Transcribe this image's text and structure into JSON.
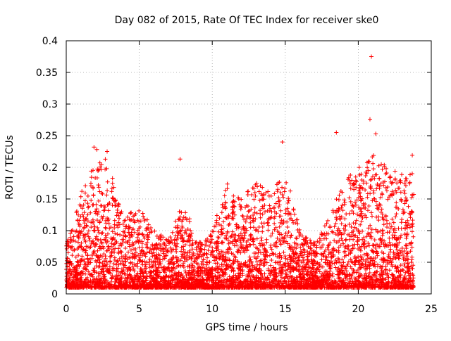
{
  "chart_data": {
    "type": "scatter",
    "title": "Day 082 of 2015, Rate Of TEC Index for receiver ske0",
    "xlabel": "GPS time / hours",
    "ylabel": "ROTI / TECUs",
    "xlim": [
      0,
      25
    ],
    "ylim": [
      0,
      0.4
    ],
    "xticks": [
      0,
      5,
      10,
      15,
      20,
      25
    ],
    "xtick_labels": [
      "0",
      "5",
      "10",
      "15",
      "20",
      "25"
    ],
    "yticks": [
      0,
      0.05,
      0.1,
      0.15,
      0.2,
      0.25,
      0.3,
      0.35,
      0.4
    ],
    "ytick_labels": [
      "0",
      "0.05",
      "0.1",
      "0.15",
      "0.2",
      "0.25",
      "0.3",
      "0.35",
      "0.4"
    ],
    "grid": true,
    "marker": "+",
    "color": "#ff0000",
    "series": [
      {
        "name": "ROTI ske0",
        "x_range": [
          0,
          23.8
        ],
        "typical_range": [
          0.01,
          0.1
        ],
        "envelope": [
          {
            "x": 0.0,
            "y": 0.08
          },
          {
            "x": 0.5,
            "y": 0.11
          },
          {
            "x": 1.0,
            "y": 0.16
          },
          {
            "x": 1.5,
            "y": 0.19
          },
          {
            "x": 2.0,
            "y": 0.2
          },
          {
            "x": 2.5,
            "y": 0.22
          },
          {
            "x": 3.0,
            "y": 0.2
          },
          {
            "x": 3.5,
            "y": 0.15
          },
          {
            "x": 4.0,
            "y": 0.12
          },
          {
            "x": 5.0,
            "y": 0.14
          },
          {
            "x": 6.0,
            "y": 0.1
          },
          {
            "x": 7.0,
            "y": 0.09
          },
          {
            "x": 8.0,
            "y": 0.15
          },
          {
            "x": 9.0,
            "y": 0.08
          },
          {
            "x": 10.0,
            "y": 0.1
          },
          {
            "x": 11.0,
            "y": 0.18
          },
          {
            "x": 12.0,
            "y": 0.15
          },
          {
            "x": 13.0,
            "y": 0.18
          },
          {
            "x": 14.0,
            "y": 0.16
          },
          {
            "x": 15.0,
            "y": 0.2
          },
          {
            "x": 16.0,
            "y": 0.1
          },
          {
            "x": 17.0,
            "y": 0.08
          },
          {
            "x": 18.0,
            "y": 0.12
          },
          {
            "x": 19.0,
            "y": 0.18
          },
          {
            "x": 20.0,
            "y": 0.2
          },
          {
            "x": 21.0,
            "y": 0.22
          },
          {
            "x": 22.0,
            "y": 0.2
          },
          {
            "x": 23.0,
            "y": 0.19
          },
          {
            "x": 23.8,
            "y": 0.19
          }
        ],
        "outliers": [
          {
            "x": 1.9,
            "y": 0.232
          },
          {
            "x": 2.1,
            "y": 0.228
          },
          {
            "x": 2.8,
            "y": 0.225
          },
          {
            "x": 7.8,
            "y": 0.213
          },
          {
            "x": 14.8,
            "y": 0.24
          },
          {
            "x": 18.5,
            "y": 0.255
          },
          {
            "x": 20.8,
            "y": 0.276
          },
          {
            "x": 20.9,
            "y": 0.375
          },
          {
            "x": 21.2,
            "y": 0.253
          },
          {
            "x": 23.7,
            "y": 0.219
          }
        ]
      }
    ]
  }
}
